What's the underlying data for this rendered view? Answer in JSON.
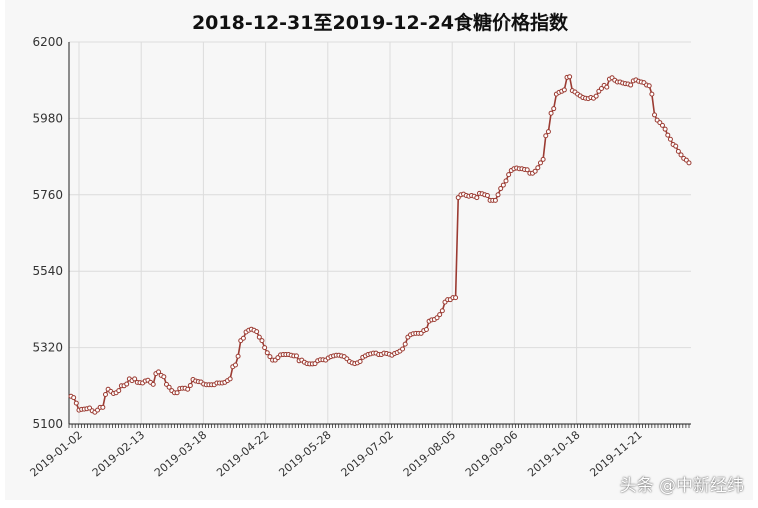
{
  "chart_data": {
    "type": "line",
    "title": "2018-12-31至2019-12-24食糖价格指数",
    "xlabel": "",
    "ylabel": "",
    "ylim": [
      5100,
      6200
    ],
    "yticks": [
      5100,
      5320,
      5540,
      5760,
      5980,
      6200
    ],
    "xticks": [
      "2019-01-02",
      "2019-02-13",
      "2019-03-18",
      "2019-04-22",
      "2019-05-28",
      "2019-07-02",
      "2019-08-05",
      "2019-09-06",
      "2019-10-18",
      "2019-11-21"
    ],
    "grid": true,
    "legend": "none",
    "line_color": "#9b3b32",
    "series": [
      {
        "values": [
          5180,
          5176,
          5160,
          5140,
          5142,
          5143,
          5144,
          5146,
          5138,
          5134,
          5140,
          5148,
          5148,
          5185,
          5200,
          5194,
          5188,
          5190,
          5196,
          5210,
          5210,
          5215,
          5230,
          5225,
          5230,
          5220,
          5219,
          5218,
          5224,
          5226,
          5220,
          5214,
          5245,
          5250,
          5240,
          5236,
          5214,
          5206,
          5196,
          5190,
          5190,
          5202,
          5203,
          5203,
          5200,
          5211,
          5228,
          5224,
          5222,
          5221,
          5215,
          5213,
          5213,
          5213,
          5213,
          5218,
          5218,
          5218,
          5220,
          5225,
          5230,
          5265,
          5270,
          5295,
          5340,
          5347,
          5365,
          5370,
          5373,
          5370,
          5366,
          5350,
          5340,
          5320,
          5305,
          5294,
          5284,
          5284,
          5291,
          5299,
          5300,
          5300,
          5300,
          5298,
          5296,
          5296,
          5282,
          5284,
          5278,
          5274,
          5273,
          5273,
          5274,
          5282,
          5285,
          5285,
          5284,
          5290,
          5294,
          5296,
          5298,
          5298,
          5296,
          5294,
          5288,
          5280,
          5276,
          5274,
          5276,
          5280,
          5292,
          5296,
          5300,
          5302,
          5304,
          5304,
          5300,
          5300,
          5304,
          5303,
          5301,
          5298,
          5303,
          5306,
          5310,
          5316,
          5330,
          5350,
          5357,
          5360,
          5361,
          5361,
          5361,
          5369,
          5372,
          5396,
          5400,
          5401,
          5406,
          5415,
          5426,
          5451,
          5458,
          5458,
          5464,
          5464,
          5752,
          5760,
          5762,
          5758,
          5756,
          5758,
          5756,
          5752,
          5764,
          5763,
          5760,
          5758,
          5744,
          5744,
          5744,
          5760,
          5778,
          5788,
          5800,
          5818,
          5830,
          5835,
          5837,
          5835,
          5835,
          5833,
          5832,
          5822,
          5822,
          5828,
          5838,
          5852,
          5862,
          5930,
          5942,
          5995,
          6008,
          6050,
          6055,
          6058,
          6062,
          6098,
          6100,
          6060,
          6056,
          6050,
          6045,
          6040,
          6038,
          6037,
          6040,
          6038,
          6044,
          6058,
          6066,
          6075,
          6070,
          6093,
          6097,
          6090,
          6085,
          6085,
          6082,
          6080,
          6079,
          6076,
          6088,
          6091,
          6087,
          6085,
          6083,
          6076,
          6074,
          6050,
          5990,
          5975,
          5968,
          5960,
          5949,
          5932,
          5920,
          5905,
          5900,
          5885,
          5875,
          5865,
          5860,
          5852
        ]
      }
    ]
  },
  "watermark": "头条 @中新经纬"
}
